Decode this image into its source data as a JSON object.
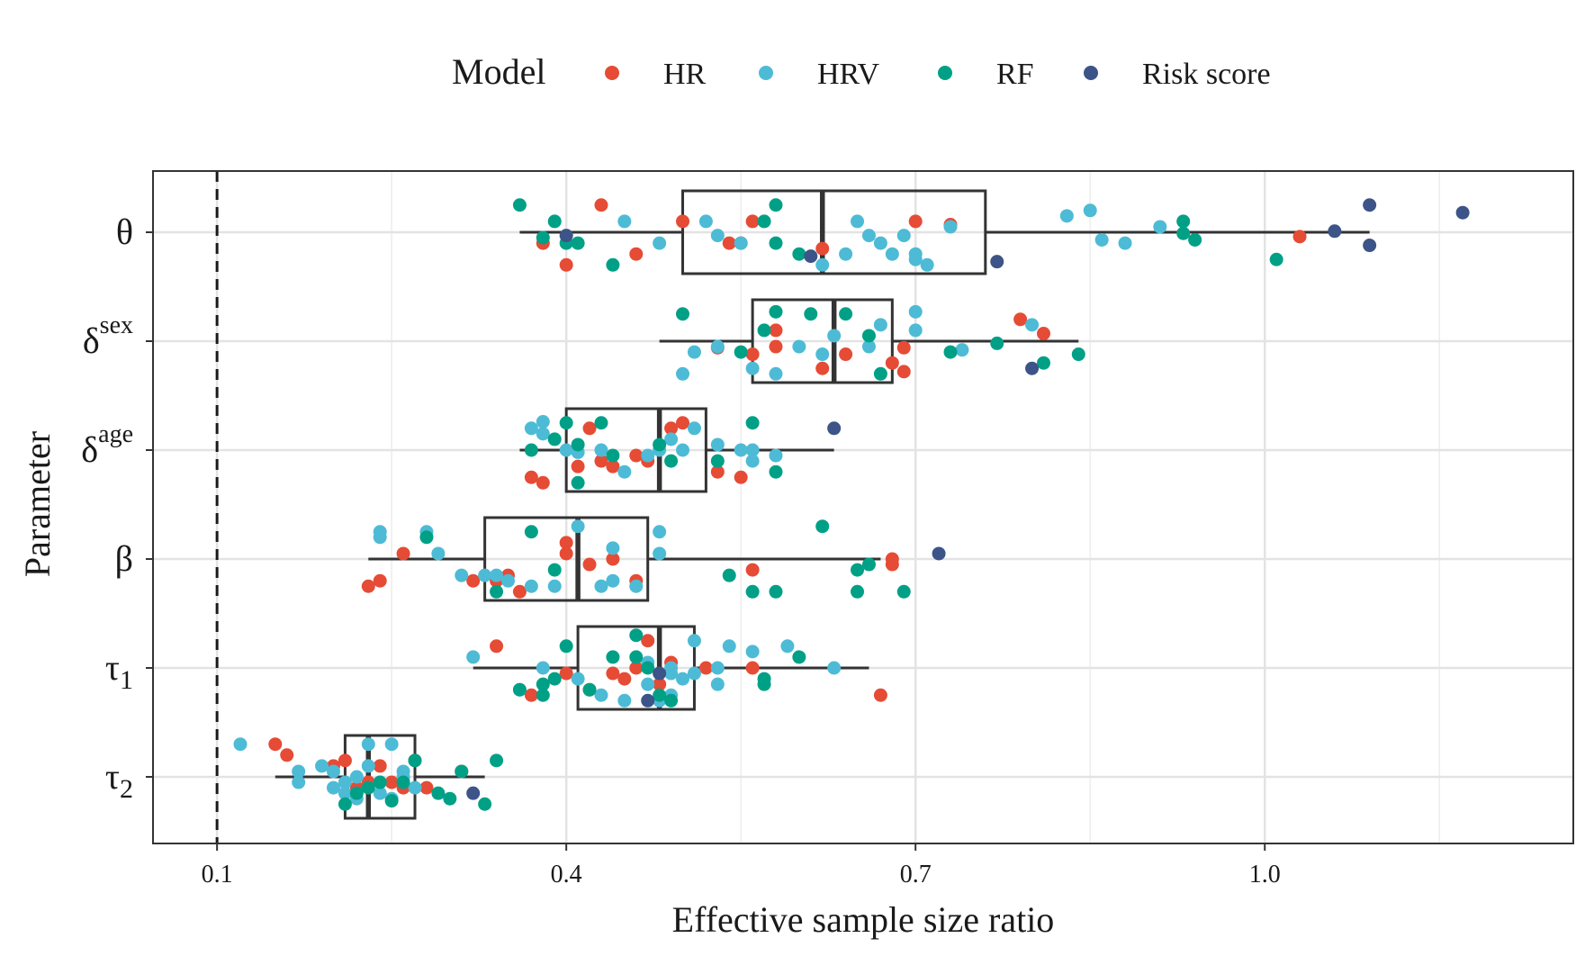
{
  "chart_data": {
    "type": "boxplot",
    "xlabel": "Effective sample size ratio",
    "ylabel": "Parameter",
    "xlim": [
      0.045,
      1.265
    ],
    "x_ticks": [
      0.1,
      0.4,
      0.7,
      1.0
    ],
    "x_tick_labels": [
      "0.1",
      "0.4",
      "0.7",
      "1.0"
    ],
    "reference_line": {
      "x": 0.1,
      "style": "dashed"
    },
    "grid": true,
    "legend": {
      "title": "Model",
      "placement": "top",
      "entries": [
        {
          "name": "HR",
          "color": "#e64b35"
        },
        {
          "name": "HRV",
          "color": "#4dbbd5"
        },
        {
          "name": "RF",
          "color": "#00a087"
        },
        {
          "name": "Risk score",
          "color": "#3c5488"
        }
      ]
    },
    "categories": [
      {
        "key": "theta",
        "base": "θ",
        "sup": "",
        "sub": ""
      },
      {
        "key": "delta_sex",
        "base": "δ",
        "sup": "sex",
        "sub": ""
      },
      {
        "key": "delta_age",
        "base": "δ",
        "sup": "age",
        "sub": ""
      },
      {
        "key": "beta",
        "base": "β",
        "sup": "",
        "sub": ""
      },
      {
        "key": "tau1",
        "base": "τ",
        "sup": "",
        "sub": "1"
      },
      {
        "key": "tau2",
        "base": "τ",
        "sup": "",
        "sub": "2"
      }
    ],
    "boxes": [
      {
        "category": "theta",
        "whisker_low": 0.36,
        "q1": 0.5,
        "median": 0.62,
        "q3": 0.76,
        "whisker_high": 1.09
      },
      {
        "category": "delta_sex",
        "whisker_low": 0.48,
        "q1": 0.56,
        "median": 0.63,
        "q3": 0.68,
        "whisker_high": 0.84
      },
      {
        "category": "delta_age",
        "whisker_low": 0.36,
        "q1": 0.4,
        "median": 0.48,
        "q3": 0.52,
        "whisker_high": 0.63
      },
      {
        "category": "beta",
        "whisker_low": 0.23,
        "q1": 0.33,
        "median": 0.41,
        "q3": 0.47,
        "whisker_high": 0.67
      },
      {
        "category": "tau1",
        "whisker_low": 0.32,
        "q1": 0.41,
        "median": 0.48,
        "q3": 0.51,
        "whisker_high": 0.66
      },
      {
        "category": "tau2",
        "whisker_low": 0.15,
        "q1": 0.21,
        "median": 0.23,
        "q3": 0.27,
        "whisker_high": 0.33
      }
    ],
    "points": {
      "theta": {
        "HR": [
          [
            0.4,
            0.3
          ],
          [
            0.38,
            0.1
          ],
          [
            0.43,
            -0.25
          ],
          [
            0.46,
            0.2
          ],
          [
            0.5,
            -0.1
          ],
          [
            0.54,
            0.1
          ],
          [
            0.55,
            0.1
          ],
          [
            0.56,
            -0.1
          ],
          [
            0.62,
            0.15
          ],
          [
            0.7,
            -0.1
          ],
          [
            0.73,
            -0.07
          ],
          [
            1.03,
            0.04
          ]
        ],
        "HRV": [
          [
            0.45,
            -0.1
          ],
          [
            0.48,
            0.1
          ],
          [
            0.52,
            -0.1
          ],
          [
            0.53,
            0.03
          ],
          [
            0.55,
            0.1
          ],
          [
            0.62,
            0.3
          ],
          [
            0.64,
            0.2
          ],
          [
            0.65,
            -0.1
          ],
          [
            0.66,
            0.03
          ],
          [
            0.68,
            0.2
          ],
          [
            0.69,
            0.03
          ],
          [
            0.7,
            0.2
          ],
          [
            0.71,
            0.3
          ],
          [
            0.73,
            -0.05
          ],
          [
            0.83,
            -0.15
          ],
          [
            0.85,
            -0.2
          ],
          [
            0.86,
            0.07
          ],
          [
            0.91,
            -0.05
          ],
          [
            0.88,
            0.1
          ],
          [
            0.7,
            0.25
          ],
          [
            0.67,
            0.1
          ]
        ],
        "RF": [
          [
            0.36,
            -0.25
          ],
          [
            0.38,
            0.05
          ],
          [
            0.39,
            -0.1
          ],
          [
            0.4,
            0.1
          ],
          [
            0.41,
            0.1
          ],
          [
            0.44,
            0.3
          ],
          [
            0.57,
            -0.1
          ],
          [
            0.58,
            0.1
          ],
          [
            0.58,
            -0.25
          ],
          [
            0.6,
            0.2
          ],
          [
            0.93,
            -0.1
          ],
          [
            0.93,
            0.01
          ],
          [
            0.94,
            0.07
          ],
          [
            1.01,
            0.25
          ]
        ],
        "Risk score": [
          [
            0.4,
            0.03
          ],
          [
            0.61,
            0.22
          ],
          [
            0.77,
            0.27
          ],
          [
            1.06,
            -0.01
          ],
          [
            1.09,
            0.12
          ],
          [
            1.09,
            -0.25
          ],
          [
            1.17,
            -0.18
          ]
        ]
      },
      "delta_sex": {
        "HR": [
          [
            0.53,
            0.06
          ],
          [
            0.56,
            0.12
          ],
          [
            0.58,
            -0.1
          ],
          [
            0.58,
            0.05
          ],
          [
            0.62,
            0.25
          ],
          [
            0.64,
            0.12
          ],
          [
            0.68,
            0.2
          ],
          [
            0.69,
            0.28
          ],
          [
            0.69,
            0.06
          ],
          [
            0.79,
            -0.2
          ],
          [
            0.81,
            -0.07
          ]
        ],
        "HRV": [
          [
            0.51,
            0.1
          ],
          [
            0.53,
            0.05
          ],
          [
            0.56,
            0.25
          ],
          [
            0.58,
            0.3
          ],
          [
            0.6,
            0.05
          ],
          [
            0.62,
            0.12
          ],
          [
            0.63,
            -0.05
          ],
          [
            0.66,
            0.05
          ],
          [
            0.67,
            -0.15
          ],
          [
            0.7,
            -0.1
          ],
          [
            0.7,
            -0.27
          ],
          [
            0.74,
            0.08
          ],
          [
            0.8,
            -0.15
          ],
          [
            0.5,
            0.3
          ]
        ],
        "RF": [
          [
            0.5,
            -0.25
          ],
          [
            0.55,
            0.1
          ],
          [
            0.58,
            -0.27
          ],
          [
            0.61,
            -0.25
          ],
          [
            0.64,
            -0.25
          ],
          [
            0.66,
            -0.05
          ],
          [
            0.67,
            0.3
          ],
          [
            0.73,
            0.1
          ],
          [
            0.77,
            0.02
          ],
          [
            0.81,
            0.2
          ],
          [
            0.84,
            0.12
          ],
          [
            0.57,
            -0.1
          ]
        ],
        "Risk score": [
          [
            0.8,
            0.25
          ]
        ]
      },
      "delta_age": {
        "HR": [
          [
            0.37,
            0.25
          ],
          [
            0.38,
            0.3
          ],
          [
            0.41,
            0.15
          ],
          [
            0.43,
            0.1
          ],
          [
            0.44,
            0.15
          ],
          [
            0.42,
            -0.2
          ],
          [
            0.46,
            0.05
          ],
          [
            0.47,
            0.1
          ],
          [
            0.49,
            -0.2
          ],
          [
            0.5,
            -0.25
          ],
          [
            0.53,
            0.2
          ],
          [
            0.55,
            0.25
          ]
        ],
        "HRV": [
          [
            0.37,
            -0.2
          ],
          [
            0.38,
            -0.15
          ],
          [
            0.4,
            0.0
          ],
          [
            0.41,
            0.02
          ],
          [
            0.43,
            0.0
          ],
          [
            0.45,
            0.2
          ],
          [
            0.47,
            0.05
          ],
          [
            0.48,
            0.0
          ],
          [
            0.49,
            -0.1
          ],
          [
            0.5,
            0.0
          ],
          [
            0.51,
            -0.2
          ],
          [
            0.53,
            -0.05
          ],
          [
            0.55,
            0.0
          ],
          [
            0.56,
            0.1
          ],
          [
            0.56,
            0.0
          ],
          [
            0.58,
            0.05
          ],
          [
            0.38,
            -0.26
          ]
        ],
        "RF": [
          [
            0.37,
            0.0
          ],
          [
            0.39,
            -0.1
          ],
          [
            0.4,
            -0.25
          ],
          [
            0.41,
            0.3
          ],
          [
            0.43,
            -0.25
          ],
          [
            0.44,
            0.05
          ],
          [
            0.48,
            -0.05
          ],
          [
            0.49,
            0.1
          ],
          [
            0.53,
            0.1
          ],
          [
            0.56,
            -0.25
          ],
          [
            0.58,
            0.2
          ],
          [
            0.41,
            -0.05
          ]
        ],
        "Risk score": [
          [
            0.63,
            -0.2
          ]
        ]
      },
      "beta": {
        "HR": [
          [
            0.23,
            0.25
          ],
          [
            0.24,
            0.2
          ],
          [
            0.26,
            -0.05
          ],
          [
            0.32,
            0.2
          ],
          [
            0.34,
            0.2
          ],
          [
            0.35,
            0.15
          ],
          [
            0.4,
            -0.05
          ],
          [
            0.4,
            -0.15
          ],
          [
            0.42,
            0.05
          ],
          [
            0.44,
            0.0
          ],
          [
            0.46,
            0.2
          ],
          [
            0.56,
            0.1
          ],
          [
            0.68,
            0.05
          ],
          [
            0.68,
            0.0
          ],
          [
            0.36,
            0.3
          ]
        ],
        "HRV": [
          [
            0.24,
            -0.2
          ],
          [
            0.24,
            -0.25
          ],
          [
            0.28,
            -0.25
          ],
          [
            0.29,
            -0.05
          ],
          [
            0.31,
            0.15
          ],
          [
            0.33,
            0.15
          ],
          [
            0.34,
            0.15
          ],
          [
            0.35,
            0.2
          ],
          [
            0.37,
            0.25
          ],
          [
            0.39,
            0.25
          ],
          [
            0.41,
            -0.3
          ],
          [
            0.43,
            0.25
          ],
          [
            0.44,
            -0.1
          ],
          [
            0.46,
            0.25
          ],
          [
            0.48,
            -0.25
          ],
          [
            0.48,
            -0.05
          ],
          [
            0.44,
            0.2
          ]
        ],
        "RF": [
          [
            0.28,
            -0.2
          ],
          [
            0.34,
            0.3
          ],
          [
            0.37,
            -0.25
          ],
          [
            0.39,
            0.1
          ],
          [
            0.54,
            0.15
          ],
          [
            0.56,
            0.3
          ],
          [
            0.58,
            0.3
          ],
          [
            0.62,
            -0.3
          ],
          [
            0.65,
            0.3
          ],
          [
            0.65,
            0.1
          ],
          [
            0.66,
            0.05
          ],
          [
            0.69,
            0.3
          ]
        ],
        "Risk score": [
          [
            0.72,
            -0.05
          ]
        ]
      },
      "tau1": {
        "HR": [
          [
            0.34,
            -0.2
          ],
          [
            0.4,
            0.05
          ],
          [
            0.42,
            0.2
          ],
          [
            0.44,
            0.05
          ],
          [
            0.45,
            0.1
          ],
          [
            0.46,
            0.0
          ],
          [
            0.47,
            -0.25
          ],
          [
            0.49,
            -0.05
          ],
          [
            0.52,
            0.0
          ],
          [
            0.56,
            0.0
          ],
          [
            0.67,
            0.25
          ],
          [
            0.37,
            0.25
          ],
          [
            0.48,
            0.15
          ]
        ],
        "HRV": [
          [
            0.32,
            -0.1
          ],
          [
            0.36,
            0.2
          ],
          [
            0.38,
            0.0
          ],
          [
            0.41,
            0.1
          ],
          [
            0.43,
            0.25
          ],
          [
            0.45,
            0.3
          ],
          [
            0.47,
            0.15
          ],
          [
            0.48,
            0.3
          ],
          [
            0.49,
            0.25
          ],
          [
            0.49,
            0.0
          ],
          [
            0.5,
            0.1
          ],
          [
            0.51,
            -0.25
          ],
          [
            0.53,
            0.0
          ],
          [
            0.54,
            -0.2
          ],
          [
            0.56,
            -0.15
          ],
          [
            0.59,
            -0.2
          ],
          [
            0.63,
            0.0
          ],
          [
            0.49,
            0.05
          ],
          [
            0.47,
            -0.05
          ],
          [
            0.53,
            0.15
          ],
          [
            0.51,
            0.05
          ]
        ],
        "RF": [
          [
            0.36,
            0.2
          ],
          [
            0.38,
            0.15
          ],
          [
            0.38,
            0.25
          ],
          [
            0.39,
            0.1
          ],
          [
            0.4,
            -0.2
          ],
          [
            0.42,
            0.2
          ],
          [
            0.44,
            -0.1
          ],
          [
            0.46,
            -0.3
          ],
          [
            0.46,
            -0.1
          ],
          [
            0.47,
            0.0
          ],
          [
            0.48,
            0.25
          ],
          [
            0.49,
            0.3
          ],
          [
            0.57,
            0.15
          ],
          [
            0.57,
            0.1
          ],
          [
            0.6,
            -0.1
          ]
        ],
        "Risk score": [
          [
            0.48,
            0.05
          ],
          [
            0.47,
            0.3
          ]
        ]
      },
      "tau2": {
        "HR": [
          [
            0.15,
            -0.3
          ],
          [
            0.16,
            -0.2
          ],
          [
            0.2,
            -0.1
          ],
          [
            0.21,
            -0.15
          ],
          [
            0.22,
            0.1
          ],
          [
            0.23,
            0.05
          ],
          [
            0.24,
            -0.1
          ],
          [
            0.25,
            0.05
          ],
          [
            0.26,
            0.1
          ],
          [
            0.27,
            -0.15
          ],
          [
            0.28,
            0.1
          ],
          [
            0.31,
            -0.05
          ]
        ],
        "HRV": [
          [
            0.12,
            -0.3
          ],
          [
            0.17,
            0.05
          ],
          [
            0.17,
            -0.05
          ],
          [
            0.19,
            -0.1
          ],
          [
            0.2,
            0.1
          ],
          [
            0.21,
            0.15
          ],
          [
            0.21,
            0.05
          ],
          [
            0.22,
            0.2
          ],
          [
            0.23,
            -0.1
          ],
          [
            0.23,
            -0.3
          ],
          [
            0.24,
            0.05
          ],
          [
            0.25,
            0.2
          ],
          [
            0.25,
            -0.3
          ],
          [
            0.26,
            -0.05
          ],
          [
            0.27,
            0.1
          ],
          [
            0.22,
            0.0
          ],
          [
            0.24,
            0.15
          ],
          [
            0.26,
            0.0
          ],
          [
            0.2,
            -0.05
          ]
        ],
        "RF": [
          [
            0.21,
            0.25
          ],
          [
            0.22,
            0.15
          ],
          [
            0.23,
            0.1
          ],
          [
            0.24,
            0.05
          ],
          [
            0.26,
            0.05
          ],
          [
            0.27,
            -0.15
          ],
          [
            0.29,
            0.15
          ],
          [
            0.3,
            0.2
          ],
          [
            0.31,
            -0.05
          ],
          [
            0.33,
            0.25
          ],
          [
            0.34,
            -0.15
          ],
          [
            0.25,
            0.22
          ]
        ],
        "Risk score": [
          [
            0.32,
            0.15
          ]
        ]
      }
    }
  }
}
